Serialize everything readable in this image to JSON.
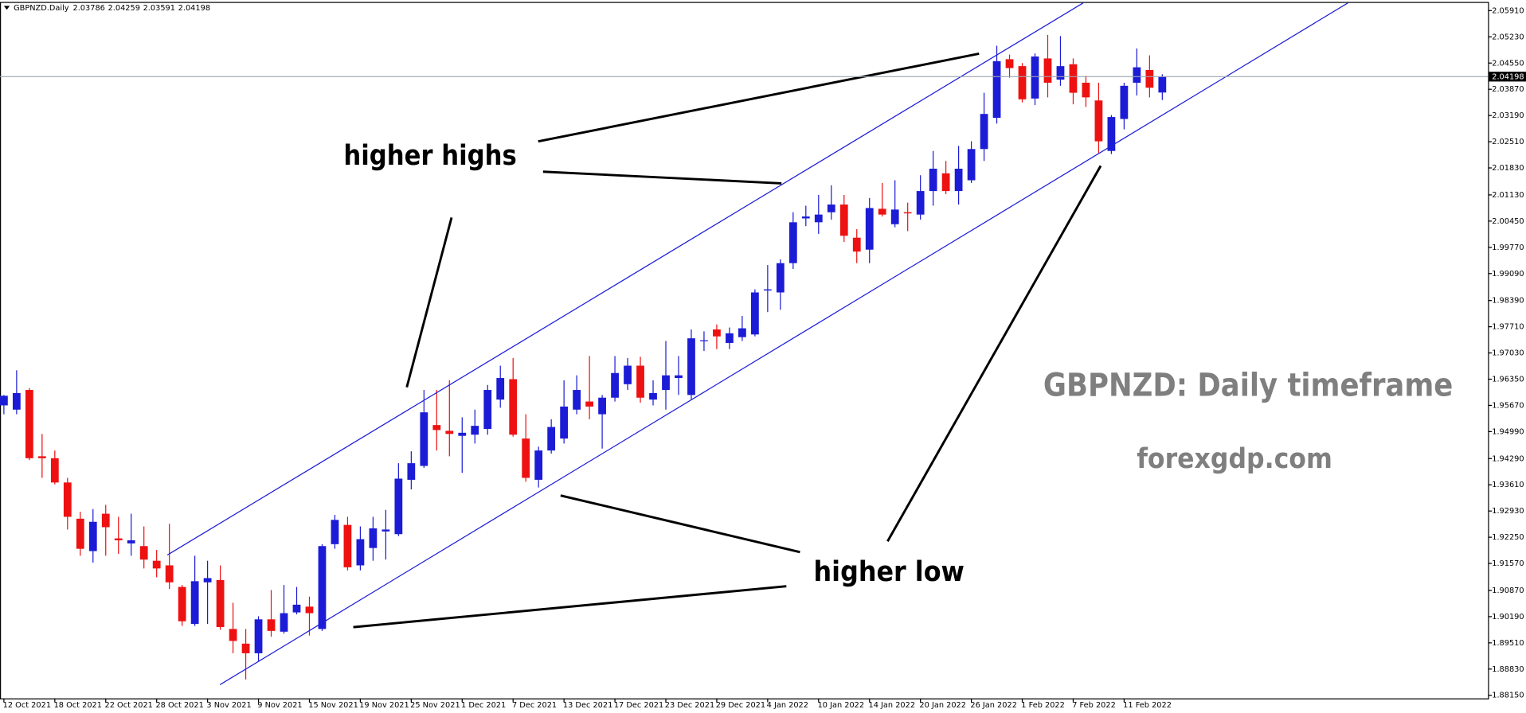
{
  "chart_data": {
    "type": "candlestick",
    "title": "GBPNZD.Daily",
    "categories": [
      "12 Oct 2021",
      null,
      null,
      null,
      "18 Oct 2021",
      null,
      null,
      null,
      "22 Oct 2021",
      null,
      null,
      null,
      "28 Oct 2021",
      null,
      null,
      null,
      "3 Nov 2021",
      null,
      null,
      null,
      "9 Nov 2021",
      null,
      null,
      null,
      "15 Nov 2021",
      null,
      null,
      null,
      "19 Nov 2021",
      null,
      null,
      null,
      "25 Nov 2021",
      null,
      null,
      null,
      "1 Dec 2021",
      null,
      null,
      null,
      "7 Dec 2021",
      null,
      null,
      null,
      "13 Dec 2021",
      null,
      null,
      null,
      "17 Dec 2021",
      null,
      null,
      null,
      "23 Dec 2021",
      null,
      null,
      null,
      "29 Dec 2021",
      null,
      null,
      null,
      "4 Jan 2022",
      null,
      null,
      null,
      "10 Jan 2022",
      null,
      null,
      null,
      "14 Jan 2022",
      null,
      null,
      null,
      "20 Jan 2022",
      null,
      null,
      null,
      "26 Jan 2022",
      null,
      null,
      null,
      "1 Feb 2022",
      null,
      null,
      null,
      "7 Feb 2022",
      null,
      null,
      null,
      "11 Feb 2022",
      null,
      null,
      null
    ],
    "open": [
      1.9567,
      1.9556,
      1.9607,
      1.9435,
      1.943,
      1.9367,
      1.9273,
      1.9189,
      1.9286,
      1.9222,
      1.9209,
      1.9202,
      1.9164,
      1.9152,
      1.9096,
      1.9,
      1.9108,
      1.9114,
      1.8987,
      1.8949,
      1.8924,
      1.9012,
      1.898,
      1.903,
      1.9045,
      1.8987,
      1.9207,
      1.9257,
      1.9152,
      1.9197,
      1.924,
      1.9233,
      1.9374,
      1.941,
      1.9516,
      1.9501,
      1.9488,
      1.9491,
      1.9506,
      1.9582,
      1.9635,
      1.9481,
      1.9374,
      1.945,
      1.9481,
      1.9556,
      1.9577,
      1.9544,
      1.9587,
      1.9622,
      1.967,
      1.9582,
      1.9607,
      1.9638,
      1.9594,
      1.9734,
      1.9764,
      1.9729,
      1.9744,
      1.9751,
      1.9865,
      1.986,
      1.9936,
      2.0052,
      2.0042,
      2.0068,
      2.0088,
      2.0002,
      1.9971,
      2.0077,
      2.0037,
      2.0068,
      2.0062,
      2.0123,
      2.0169,
      2.0123,
      2.0151,
      2.0232,
      2.0313,
      2.0465,
      2.0447,
      2.0363,
      2.0467,
      2.0412,
      2.0452,
      2.0404,
      2.0358,
      2.0227,
      2.031,
      2.0404,
      2.0437,
      2.03786
    ],
    "high": [
      1.9594,
      1.9658,
      1.9612,
      1.9493,
      1.945,
      1.9379,
      1.9291,
      1.9298,
      1.9309,
      1.9278,
      1.9286,
      1.9253,
      1.9192,
      1.926,
      1.9101,
      1.9177,
      1.9164,
      1.9152,
      1.9055,
      1.8987,
      1.902,
      1.9088,
      1.9101,
      1.9096,
      1.9071,
      1.9207,
      1.9283,
      1.9278,
      1.9253,
      1.9278,
      1.9296,
      1.9417,
      1.9448,
      1.9607,
      1.9607,
      1.9632,
      1.9536,
      1.9556,
      1.962,
      1.967,
      1.969,
      1.9544,
      1.946,
      1.9531,
      1.9632,
      1.9645,
      1.9695,
      1.9594,
      1.9695,
      1.969,
      1.9693,
      1.9632,
      1.9734,
      1.9695,
      1.9764,
      1.9759,
      1.9777,
      1.9769,
      1.9799,
      1.9868,
      1.9931,
      1.9946,
      2.0068,
      2.0085,
      2.0113,
      2.0138,
      2.0113,
      2.0024,
      2.0105,
      2.0144,
      2.0151,
      2.0093,
      2.0164,
      2.0227,
      2.0201,
      2.024,
      2.0252,
      2.0378,
      2.05,
      2.0477,
      2.0455,
      2.048,
      2.0528,
      2.0525,
      2.0467,
      2.0422,
      2.0404,
      2.032,
      2.0404,
      2.0493,
      2.0475,
      2.04259
    ],
    "low": [
      1.9544,
      1.9544,
      1.9425,
      1.9379,
      1.9362,
      1.9245,
      1.9177,
      1.9159,
      1.9177,
      1.9182,
      1.9177,
      1.9144,
      1.9121,
      1.9091,
      1.8995,
      1.8995,
      1.9,
      1.8985,
      1.8924,
      1.8856,
      1.8904,
      1.8967,
      1.8975,
      1.9025,
      1.897,
      1.8982,
      1.9195,
      1.9139,
      1.9139,
      1.9164,
      1.9167,
      1.9228,
      1.9349,
      1.9405,
      1.945,
      1.9435,
      1.9392,
      1.9468,
      1.9491,
      1.9561,
      1.9486,
      1.9369,
      1.9354,
      1.9442,
      1.9468,
      1.9544,
      1.9531,
      1.9455,
      1.9577,
      1.9607,
      1.9574,
      1.9567,
      1.9556,
      1.9594,
      1.9582,
      1.9708,
      1.9713,
      1.9713,
      1.9734,
      1.9746,
      1.9809,
      1.9815,
      1.9921,
      2.0032,
      2.0012,
      2.0049,
      1.9991,
      1.9936,
      1.9936,
      2.0057,
      2.0029,
      2.0019,
      2.0049,
      2.0085,
      2.0115,
      2.0088,
      2.0144,
      2.0201,
      2.0298,
      2.0417,
      2.0353,
      2.0346,
      2.0366,
      2.0396,
      2.0348,
      2.0341,
      2.0222,
      2.0219,
      2.0283,
      2.0371,
      2.0366,
      2.03591
    ],
    "close": [
      1.9592,
      1.9599,
      1.943,
      1.943,
      1.9367,
      1.9278,
      1.9195,
      1.9265,
      1.9251,
      1.9217,
      1.9217,
      1.9167,
      1.9144,
      1.9108,
      1.9007,
      1.9111,
      1.9119,
      1.8992,
      1.8956,
      1.8924,
      1.9012,
      1.8982,
      1.9028,
      1.905,
      1.9028,
      1.9202,
      1.927,
      1.9147,
      1.922,
      1.9248,
      1.9245,
      1.9377,
      1.9417,
      1.9549,
      1.9503,
      1.9493,
      1.9496,
      1.9514,
      1.9607,
      1.9638,
      1.9491,
      1.9379,
      1.945,
      1.9511,
      1.9564,
      1.9607,
      1.9564,
      1.9587,
      1.9651,
      1.967,
      1.9587,
      1.9599,
      1.9645,
      1.9645,
      1.9741,
      1.9736,
      1.9746,
      1.9754,
      1.9767,
      1.986,
      1.9868,
      1.9936,
      2.0042,
      2.0057,
      2.0062,
      2.0088,
      2.0007,
      1.9966,
      2.0079,
      2.0062,
      2.0075,
      2.0065,
      2.0123,
      2.0181,
      2.0123,
      2.0181,
      2.0232,
      2.0323,
      2.046,
      2.0442,
      2.0361,
      2.0472,
      2.0404,
      2.0447,
      2.0378,
      2.0366,
      2.0252,
      2.0315,
      2.0396,
      2.0444,
      2.0391,
      2.04198
    ],
    "up_color": "#1c1cd6",
    "down_color": "#ee1111",
    "ylim": [
      1.8807,
      2.0611
    ],
    "yticks": [
      {
        "value": 2.0591,
        "label": "2.05910"
      },
      {
        "value": 2.0523,
        "label": "2.05230"
      },
      {
        "value": 2.0455,
        "label": "2.04550"
      },
      {
        "value": 2.0387,
        "label": "2.03870"
      },
      {
        "value": 2.0319,
        "label": "2.03190"
      },
      {
        "value": 2.0251,
        "label": "2.02510"
      },
      {
        "value": 2.0183,
        "label": "2.01830"
      },
      {
        "value": 2.0113,
        "label": "2.01130"
      },
      {
        "value": 2.0045,
        "label": "2.00450"
      },
      {
        "value": 1.9977,
        "label": "1.99770"
      },
      {
        "value": 1.9909,
        "label": "1.99090"
      },
      {
        "value": 1.9839,
        "label": "1.98390"
      },
      {
        "value": 1.9771,
        "label": "1.97710"
      },
      {
        "value": 1.9703,
        "label": "1.97030"
      },
      {
        "value": 1.9635,
        "label": "1.96350"
      },
      {
        "value": 1.9567,
        "label": "1.95670"
      },
      {
        "value": 1.9499,
        "label": "1.94990"
      },
      {
        "value": 1.9429,
        "label": "1.94290"
      },
      {
        "value": 1.9361,
        "label": "1.93610"
      },
      {
        "value": 1.9293,
        "label": "1.92930"
      },
      {
        "value": 1.9225,
        "label": "1.92250"
      },
      {
        "value": 1.9157,
        "label": "1.91570"
      },
      {
        "value": 1.9087,
        "label": "1.90870"
      },
      {
        "value": 1.9019,
        "label": "1.90190"
      },
      {
        "value": 1.8951,
        "label": "1.89510"
      },
      {
        "value": 1.8883,
        "label": "1.88830"
      },
      {
        "value": 1.8815,
        "label": "1.88150"
      }
    ],
    "grid": false,
    "annotations": [
      "higher highs",
      "higher low",
      "GBPNZD: Daily timeframe",
      "forexgdp.com"
    ]
  }
}
